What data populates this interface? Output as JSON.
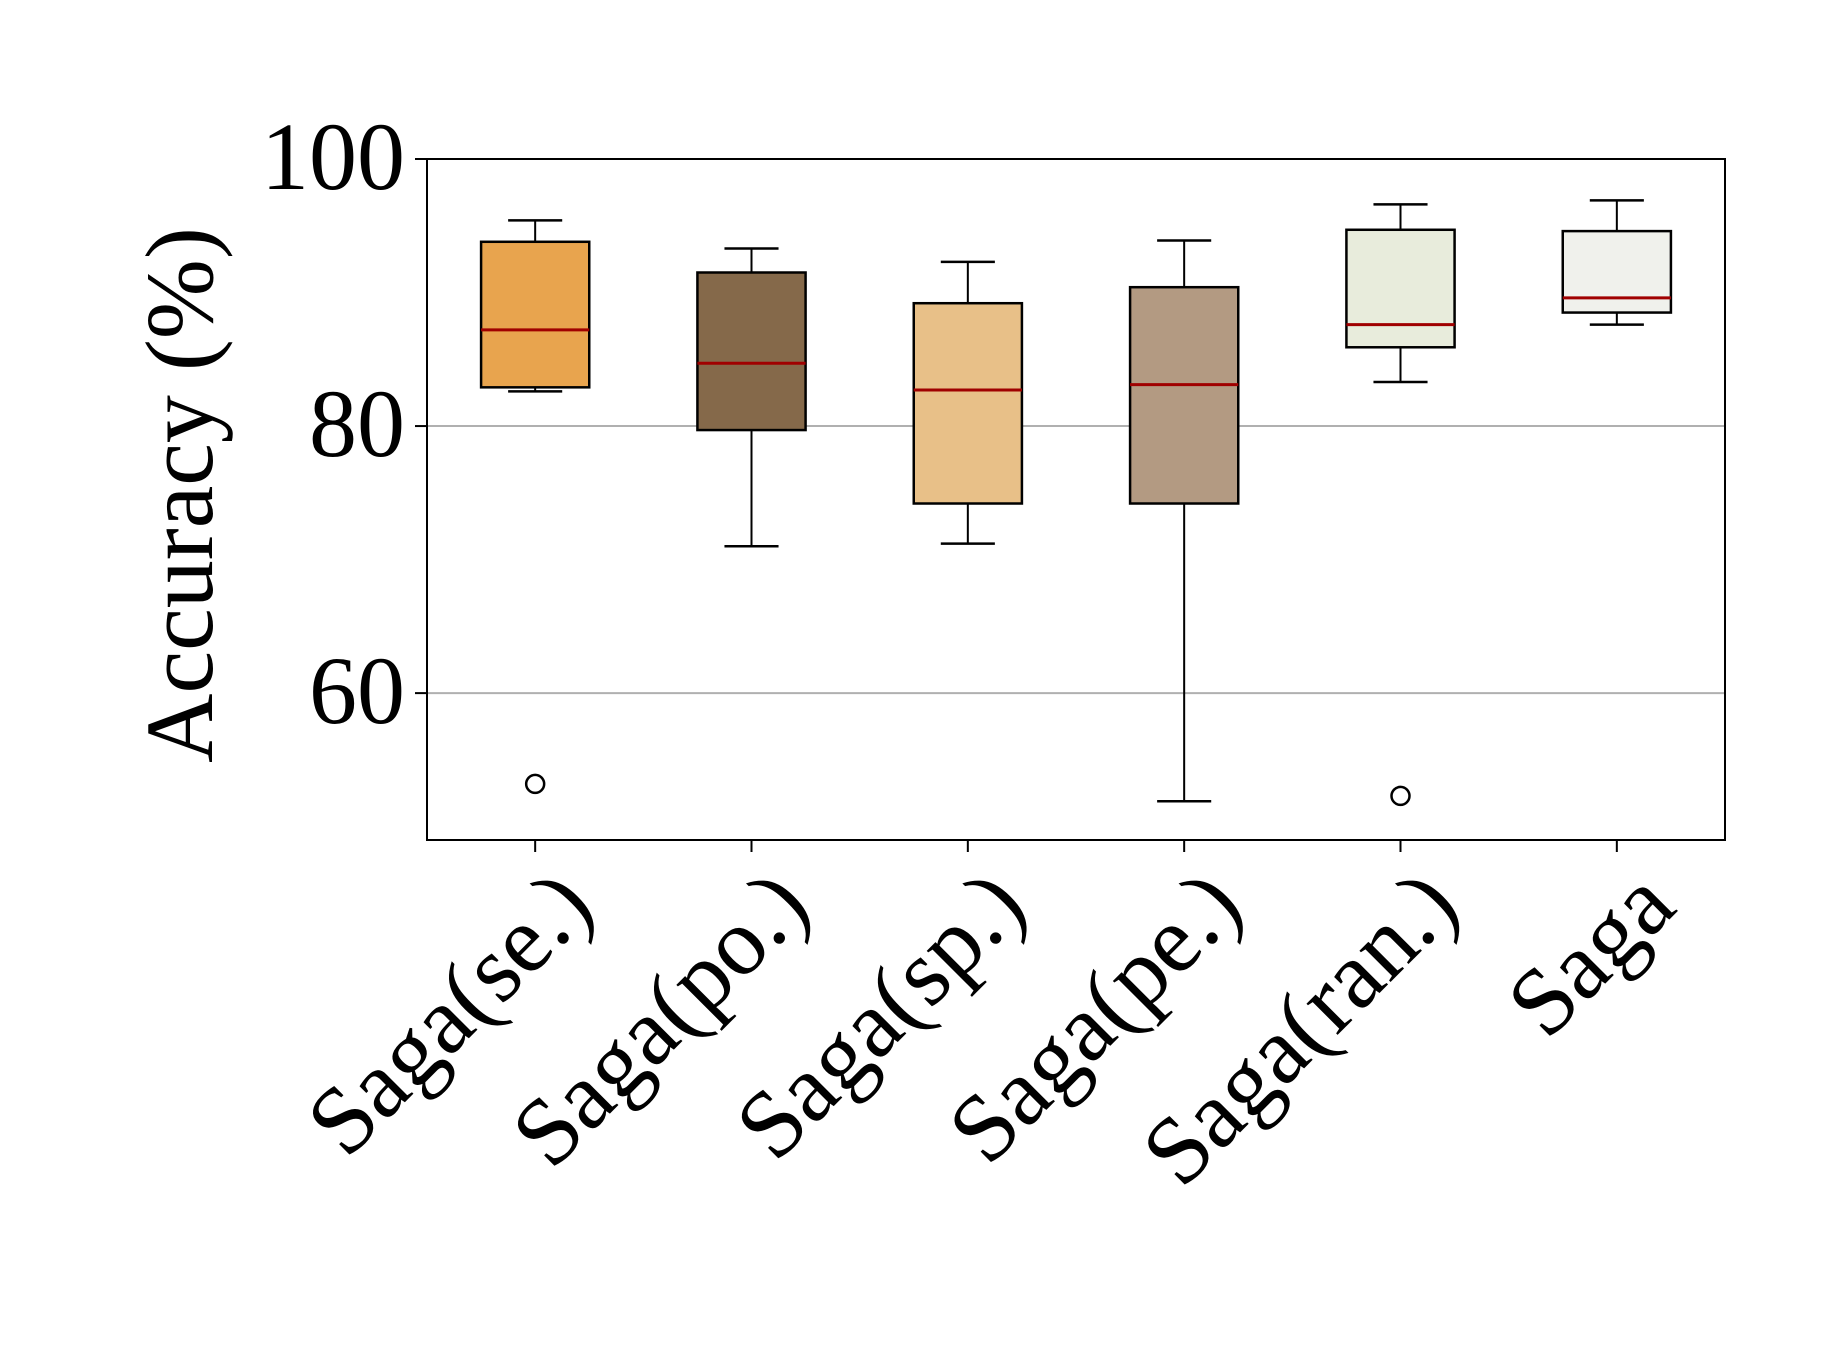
{
  "chart_data": {
    "type": "box",
    "title": "",
    "xlabel": "",
    "ylabel": "Accuracy (%)",
    "ylim": [
      49,
      100
    ],
    "yticks": [
      60,
      80,
      100
    ],
    "grid": "horizontal",
    "categories": [
      "Saga(se.)",
      "Saga(po.)",
      "Saga(sp.)",
      "Saga(pe.)",
      "Saga(ran.)",
      "Saga"
    ],
    "colors": [
      "#E8A44E",
      "#85694A",
      "#E8C088",
      "#B39A82",
      "#E8ECDC",
      "#F0F1EC"
    ],
    "median_color": "#A00000",
    "boxes": [
      {
        "whisker_low": 82.6,
        "q1": 82.9,
        "median": 87.2,
        "q3": 93.8,
        "whisker_high": 95.4,
        "outliers": [
          53.2
        ]
      },
      {
        "whisker_low": 71.0,
        "q1": 79.7,
        "median": 84.7,
        "q3": 91.5,
        "whisker_high": 93.3,
        "outliers": []
      },
      {
        "whisker_low": 71.2,
        "q1": 74.2,
        "median": 82.7,
        "q3": 89.2,
        "whisker_high": 92.3,
        "outliers": []
      },
      {
        "whisker_low": 51.9,
        "q1": 74.2,
        "median": 83.1,
        "q3": 90.4,
        "whisker_high": 93.9,
        "outliers": []
      },
      {
        "whisker_low": 83.3,
        "q1": 85.9,
        "median": 87.6,
        "q3": 94.7,
        "whisker_high": 96.6,
        "outliers": [
          52.3
        ]
      },
      {
        "whisker_low": 87.6,
        "q1": 88.5,
        "median": 89.6,
        "q3": 94.6,
        "whisker_high": 96.9,
        "outliers": []
      }
    ]
  }
}
